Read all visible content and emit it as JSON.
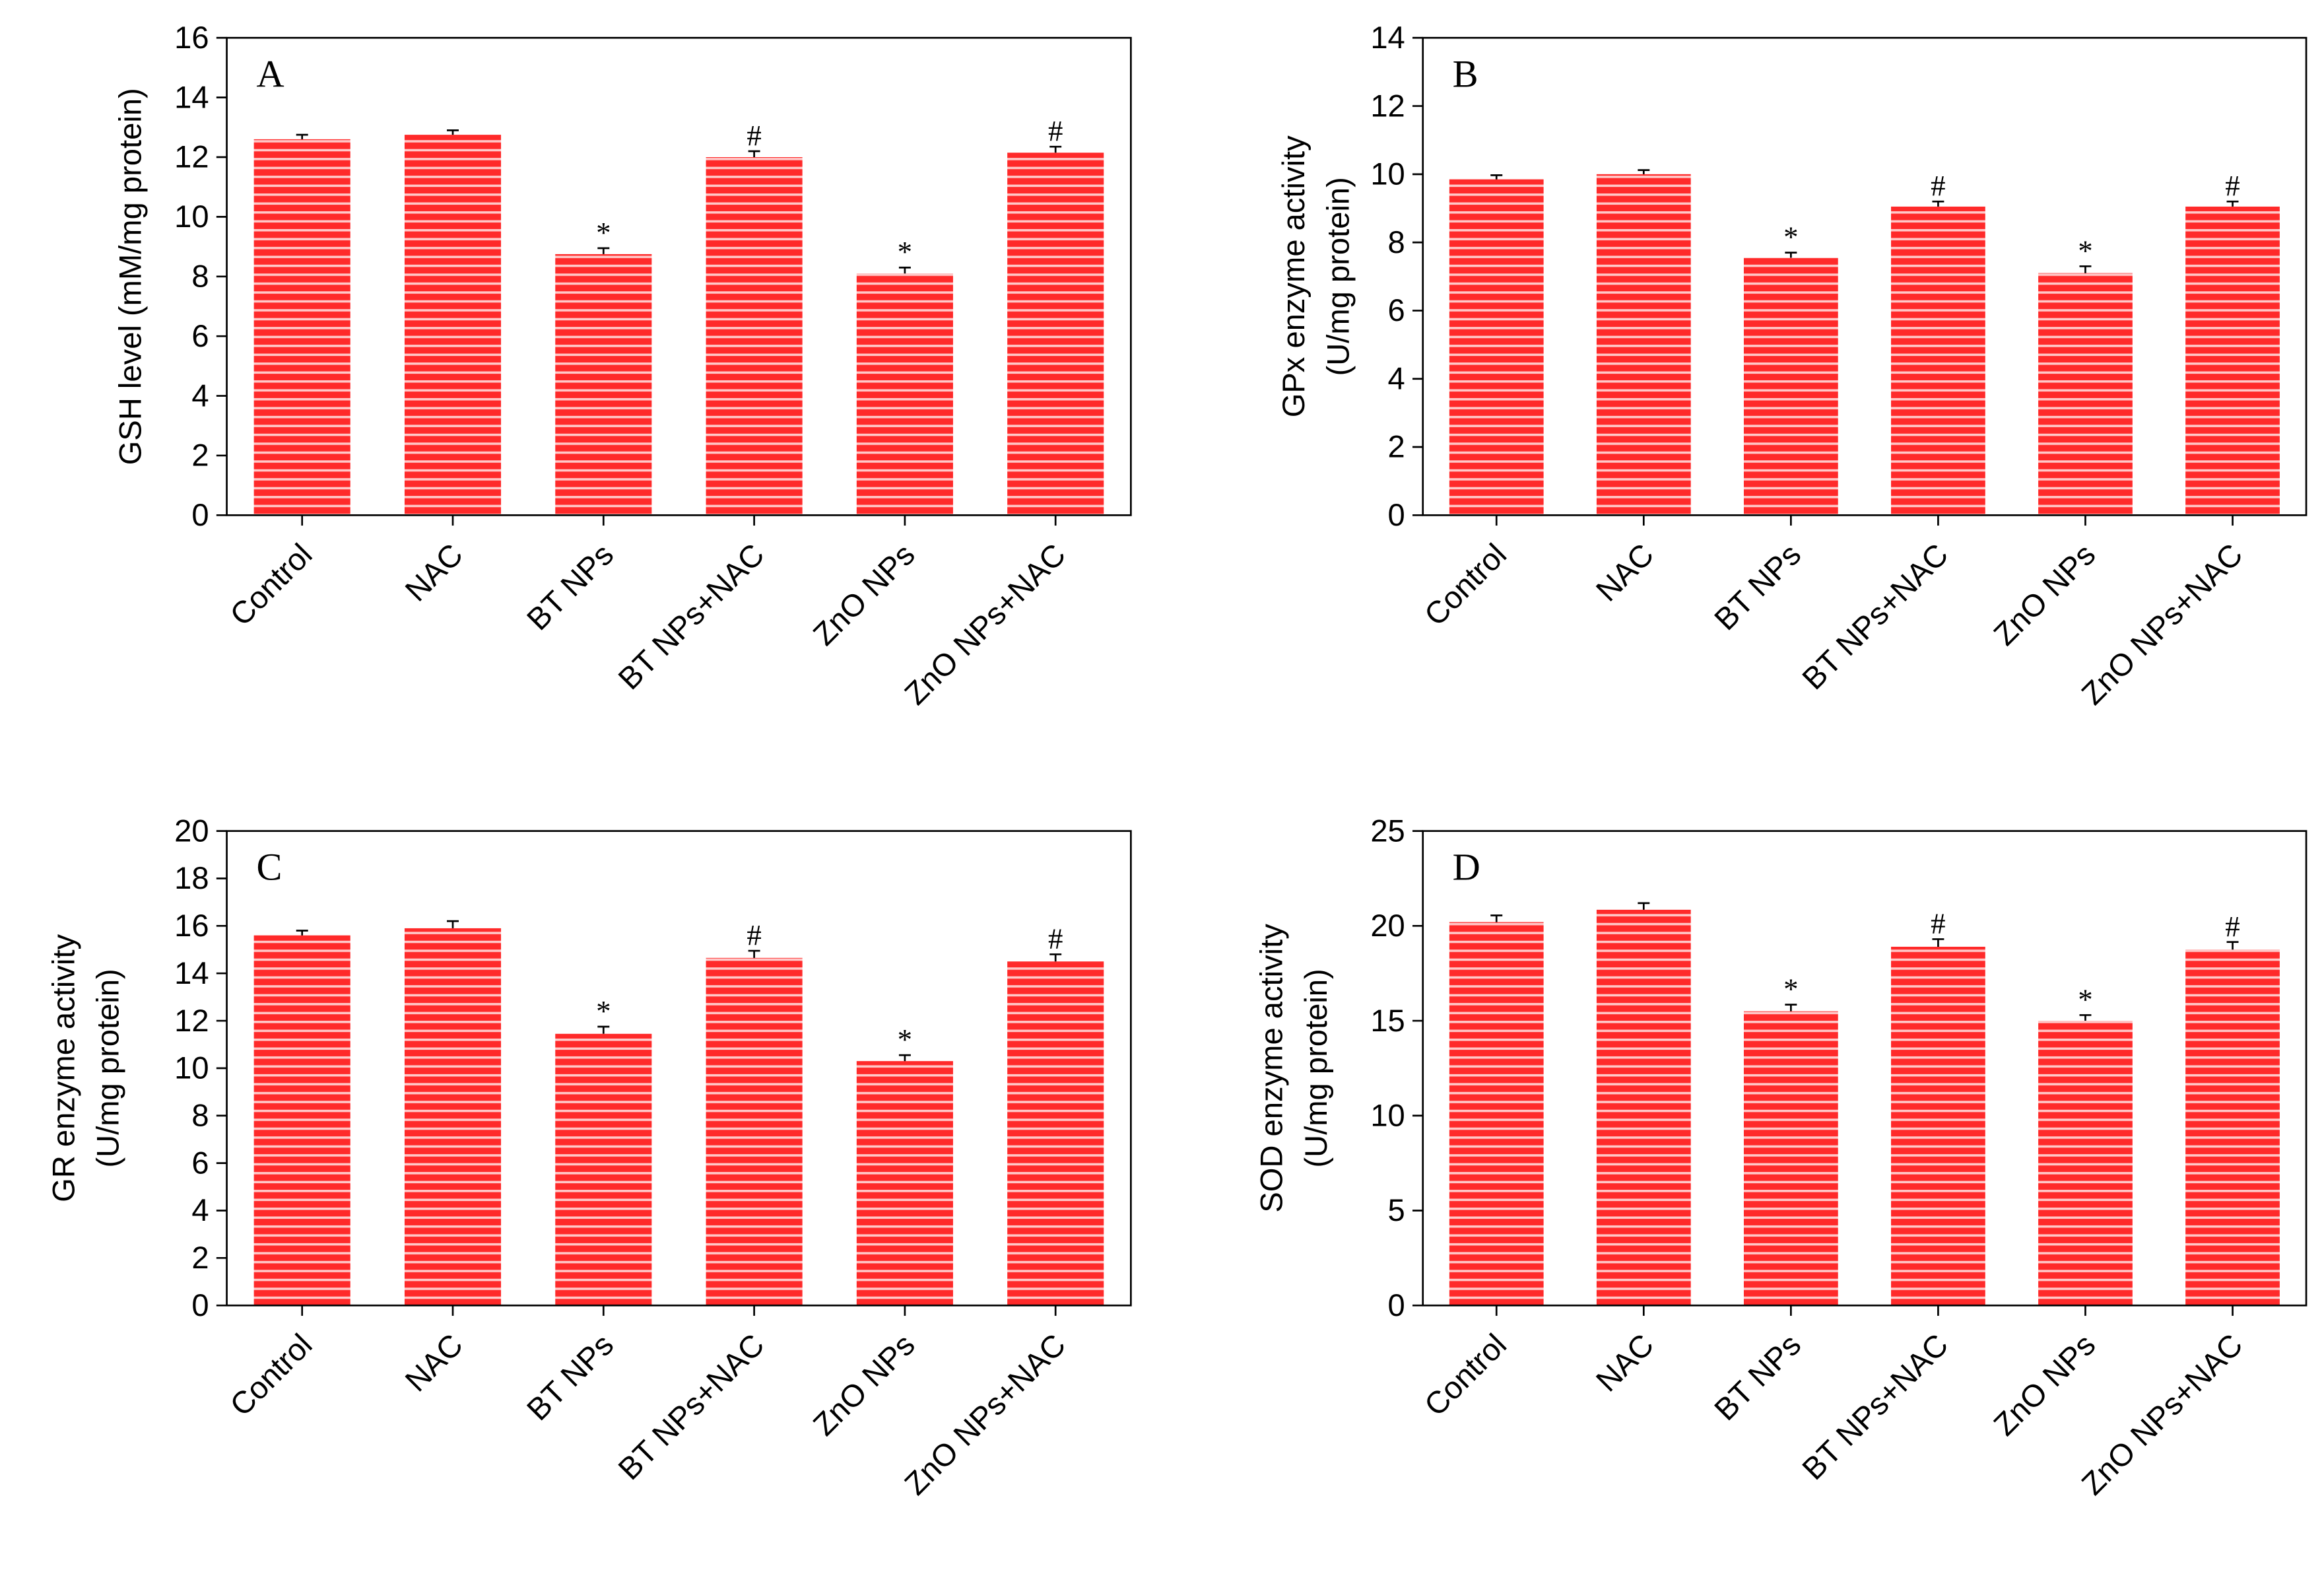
{
  "chart_data": [
    {
      "type": "bar",
      "panel_label": "A",
      "ylabel": [
        "GSH level (mM/mg protein)"
      ],
      "categories": [
        "Control",
        "NAC",
        "BT NPs",
        "BT NPs+NAC",
        "ZnO NPs",
        "ZnO NPs+NAC"
      ],
      "values": [
        12.6,
        12.75,
        8.75,
        12.0,
        8.1,
        12.15
      ],
      "errors": [
        0.15,
        0.15,
        0.2,
        0.2,
        0.2,
        0.2
      ],
      "annotations": [
        null,
        null,
        "*",
        "#",
        "*",
        "#"
      ],
      "color": "#ff2a2a",
      "ylim": [
        0,
        16
      ],
      "yticks": [
        0,
        2,
        4,
        6,
        8,
        10,
        12,
        14,
        16
      ]
    },
    {
      "type": "bar",
      "panel_label": "B",
      "ylabel": [
        "GPx enzyme activity",
        "(U/mg protein)"
      ],
      "categories": [
        "Control",
        "NAC",
        "BT NPs",
        "BT NPs+NAC",
        "ZnO NPs",
        "ZnO NPs+NAC"
      ],
      "values": [
        9.85,
        10.0,
        7.55,
        9.05,
        7.1,
        9.05
      ],
      "errors": [
        0.12,
        0.12,
        0.15,
        0.15,
        0.2,
        0.15
      ],
      "annotations": [
        null,
        null,
        "*",
        "#",
        "*",
        "#"
      ],
      "color": "#ff2a2a",
      "ylim": [
        0,
        14
      ],
      "yticks": [
        0,
        2,
        4,
        6,
        8,
        10,
        12,
        14
      ]
    },
    {
      "type": "bar",
      "panel_label": "C",
      "ylabel": [
        "GR enzyme activity",
        "(U/mg protein)"
      ],
      "categories": [
        "Control",
        "NAC",
        "BT NPs",
        "BT NPs+NAC",
        "ZnO NPs",
        "ZnO NPs+NAC"
      ],
      "values": [
        15.6,
        15.9,
        11.45,
        14.65,
        10.3,
        14.5
      ],
      "errors": [
        0.2,
        0.3,
        0.3,
        0.3,
        0.25,
        0.3
      ],
      "annotations": [
        null,
        null,
        "*",
        "#",
        "*",
        "#"
      ],
      "color": "#ff2a2a",
      "ylim": [
        0,
        20
      ],
      "yticks": [
        0,
        2,
        4,
        6,
        8,
        10,
        12,
        14,
        16,
        18,
        20
      ]
    },
    {
      "type": "bar",
      "panel_label": "D",
      "ylabel": [
        "SOD enzyme activity",
        "(U/mg protein)"
      ],
      "categories": [
        "Control",
        "NAC",
        "BT NPs",
        "BT NPs+NAC",
        "ZnO NPs",
        "ZnO NPs+NAC"
      ],
      "values": [
        20.2,
        20.85,
        15.5,
        18.9,
        15.0,
        18.75
      ],
      "errors": [
        0.35,
        0.35,
        0.35,
        0.4,
        0.3,
        0.4
      ],
      "annotations": [
        null,
        null,
        "*",
        "#",
        "*",
        "#"
      ],
      "color": "#ff2a2a",
      "ylim": [
        0,
        25
      ],
      "yticks": [
        0,
        5,
        10,
        15,
        20,
        25
      ]
    }
  ]
}
